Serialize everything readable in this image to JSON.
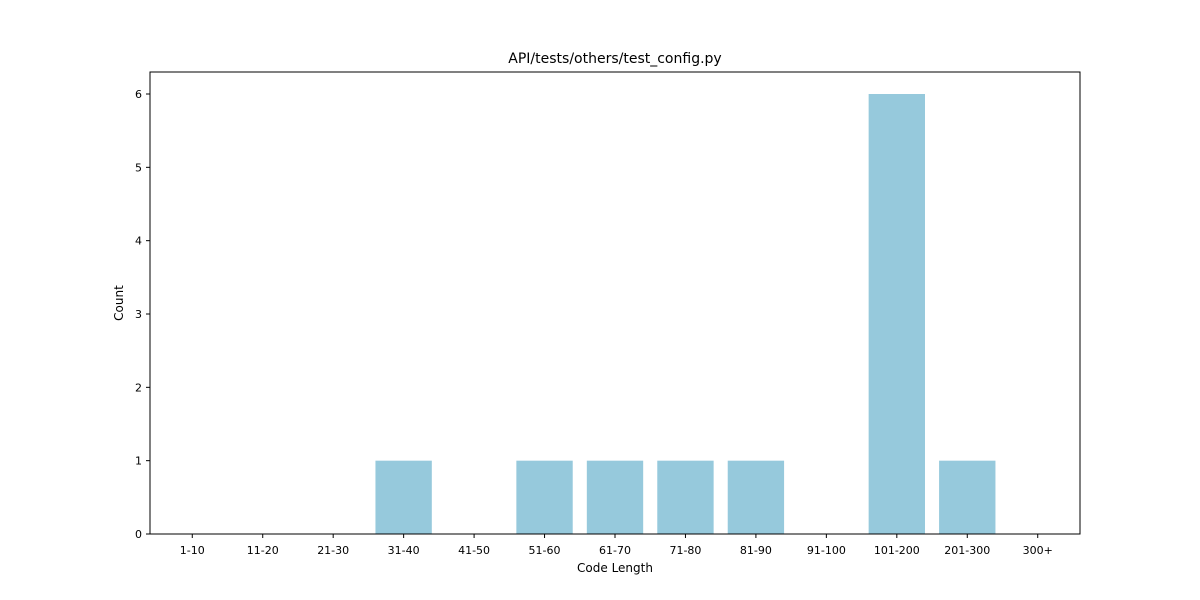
{
  "chart_data": {
    "type": "bar",
    "title": "API/tests/others/test_config.py",
    "xlabel": "Code Length",
    "ylabel": "Count",
    "categories": [
      "1-10",
      "11-20",
      "21-30",
      "31-40",
      "41-50",
      "51-60",
      "61-70",
      "71-80",
      "81-90",
      "91-100",
      "101-200",
      "201-300",
      "300+"
    ],
    "values": [
      0,
      0,
      0,
      1,
      0,
      1,
      1,
      1,
      1,
      0,
      6,
      1,
      0
    ],
    "ylim": [
      0,
      6.3
    ],
    "yticks": [
      0,
      1,
      2,
      3,
      4,
      5,
      6
    ],
    "bar_color": "#96c9dc",
    "grid": false,
    "legend": "none"
  }
}
